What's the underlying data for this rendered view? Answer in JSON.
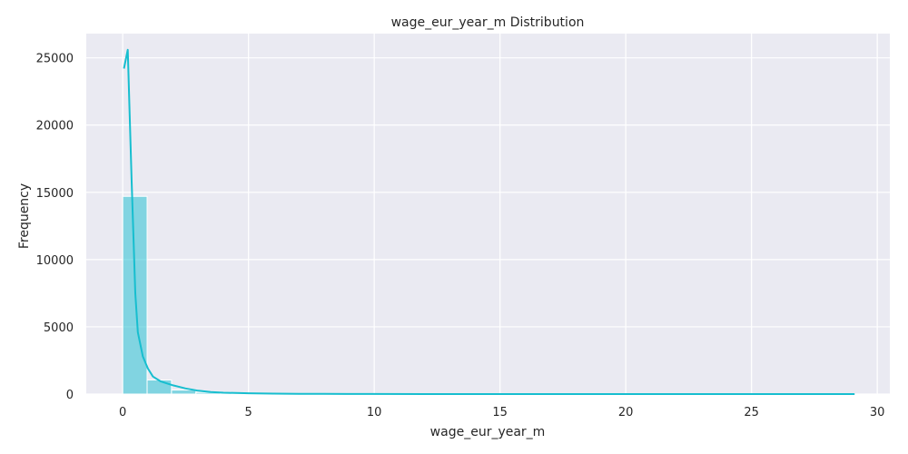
{
  "chart_data": {
    "type": "bar",
    "title": "wage_eur_year_m Distribution",
    "xlabel": "wage_eur_year_m",
    "ylabel": "Frequency",
    "xlim": [
      -1.45,
      30.5
    ],
    "ylim": [
      0,
      26800
    ],
    "xticks": [
      0,
      5,
      10,
      15,
      20,
      25,
      30
    ],
    "yticks": [
      0,
      5000,
      10000,
      15000,
      20000,
      25000
    ],
    "grid": true,
    "bar_color": "#17becf",
    "line_color": "#17becf",
    "background_color": "#eaeaf2",
    "bin_edges": [
      0.0,
      0.97,
      1.94,
      2.91,
      3.88,
      4.85,
      5.82,
      6.79,
      7.76,
      8.73,
      9.7,
      10.67,
      11.64,
      12.61,
      13.58,
      14.55,
      15.52,
      16.49,
      17.46,
      18.43,
      19.4,
      20.37,
      21.34,
      22.31,
      23.28,
      24.25,
      25.22,
      26.19,
      27.16,
      28.13,
      29.1
    ],
    "counts": [
      14700,
      1050,
      300,
      120,
      60,
      30,
      20,
      12,
      8,
      5,
      4,
      3,
      2,
      2,
      1,
      1,
      1,
      1,
      1,
      0,
      0,
      1,
      0,
      0,
      0,
      0,
      0,
      0,
      1,
      1
    ],
    "kde": {
      "x": [
        0.05,
        0.2,
        0.35,
        0.5,
        0.6,
        0.8,
        1.0,
        1.2,
        1.5,
        2.0,
        2.5,
        3.0,
        3.5,
        4.0,
        5.0,
        6.0,
        7.0,
        8.0,
        9.0,
        10.0,
        12.0,
        15.0,
        20.0,
        25.0,
        29.1
      ],
      "y": [
        24200,
        25600,
        16000,
        7500,
        4600,
        2800,
        1900,
        1300,
        950,
        650,
        420,
        250,
        150,
        100,
        60,
        35,
        20,
        12,
        8,
        5,
        3,
        2,
        1,
        1,
        1
      ]
    }
  }
}
